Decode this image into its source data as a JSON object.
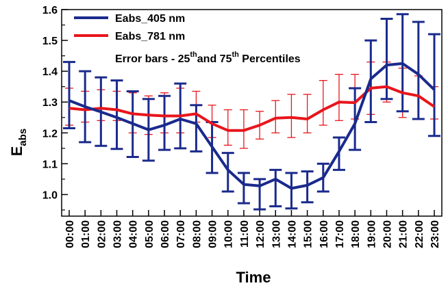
{
  "chart_data": {
    "type": "line",
    "x": [
      "00:00",
      "01:00",
      "02:00",
      "03:00",
      "04:00",
      "05:00",
      "06:00",
      "07:00",
      "08:00",
      "09:00",
      "10:00",
      "11:00",
      "12:00",
      "13:00",
      "14:00",
      "15:00",
      "16:00",
      "17:00",
      "18:00",
      "19:00",
      "20:00",
      "21:00",
      "22:00",
      "23:00"
    ],
    "ylim": [
      0.93,
      1.6
    ],
    "yticks": [
      1.0,
      1.1,
      1.2,
      1.3,
      1.4,
      1.5,
      1.6
    ],
    "ytick_labels": [
      "1.0",
      "1.1",
      "1.2",
      "1.3",
      "1.4",
      "1.5",
      "1.6"
    ],
    "xlabel": "Time",
    "ylabel_main": "E",
    "ylabel_sub": "abs",
    "annotation": {
      "prefix": "Error bars - 25",
      "sup1": "th",
      "middle": "and 75",
      "sup2": "th",
      "suffix": " Percentiles"
    },
    "series": [
      {
        "name": "Eabs_405 nm",
        "color": "#1a2a8c",
        "values": [
          1.305,
          1.285,
          1.268,
          1.25,
          1.23,
          1.21,
          1.225,
          1.245,
          1.23,
          1.155,
          1.08,
          1.033,
          1.028,
          1.05,
          1.02,
          1.03,
          1.055,
          1.14,
          1.23,
          1.375,
          1.42,
          1.425,
          1.39,
          1.34
        ],
        "lower": [
          1.215,
          1.17,
          1.158,
          1.148,
          1.122,
          1.11,
          1.145,
          1.15,
          1.14,
          1.07,
          1.01,
          0.972,
          0.952,
          0.962,
          0.955,
          0.975,
          1.01,
          1.08,
          1.145,
          1.235,
          1.31,
          1.27,
          1.245,
          1.19
        ],
        "upper": [
          1.43,
          1.4,
          1.38,
          1.37,
          1.335,
          1.31,
          1.32,
          1.36,
          1.29,
          1.235,
          1.135,
          1.07,
          1.05,
          1.08,
          1.07,
          1.075,
          1.1,
          1.185,
          1.345,
          1.5,
          1.57,
          1.585,
          1.56,
          1.52
        ]
      },
      {
        "name": "Eabs_781 nm",
        "color": "#e8151b",
        "values": [
          1.28,
          1.275,
          1.28,
          1.275,
          1.262,
          1.258,
          1.255,
          1.255,
          1.262,
          1.23,
          1.208,
          1.208,
          1.225,
          1.248,
          1.25,
          1.245,
          1.275,
          1.3,
          1.298,
          1.345,
          1.35,
          1.33,
          1.32,
          1.285
        ],
        "lower": [
          1.225,
          1.235,
          1.24,
          1.24,
          1.2,
          1.195,
          1.2,
          1.2,
          1.235,
          1.185,
          1.16,
          1.15,
          1.18,
          1.2,
          1.185,
          1.2,
          1.225,
          1.24,
          1.245,
          1.26,
          1.3,
          1.25,
          1.245,
          1.245
        ],
        "upper": [
          1.345,
          1.335,
          1.34,
          1.335,
          1.33,
          1.32,
          1.33,
          1.345,
          1.335,
          1.29,
          1.275,
          1.275,
          1.27,
          1.305,
          1.325,
          1.325,
          1.37,
          1.39,
          1.39,
          1.43,
          1.43,
          1.41,
          1.385,
          1.35
        ]
      }
    ],
    "legend_position": "top-left",
    "grid": false
  }
}
